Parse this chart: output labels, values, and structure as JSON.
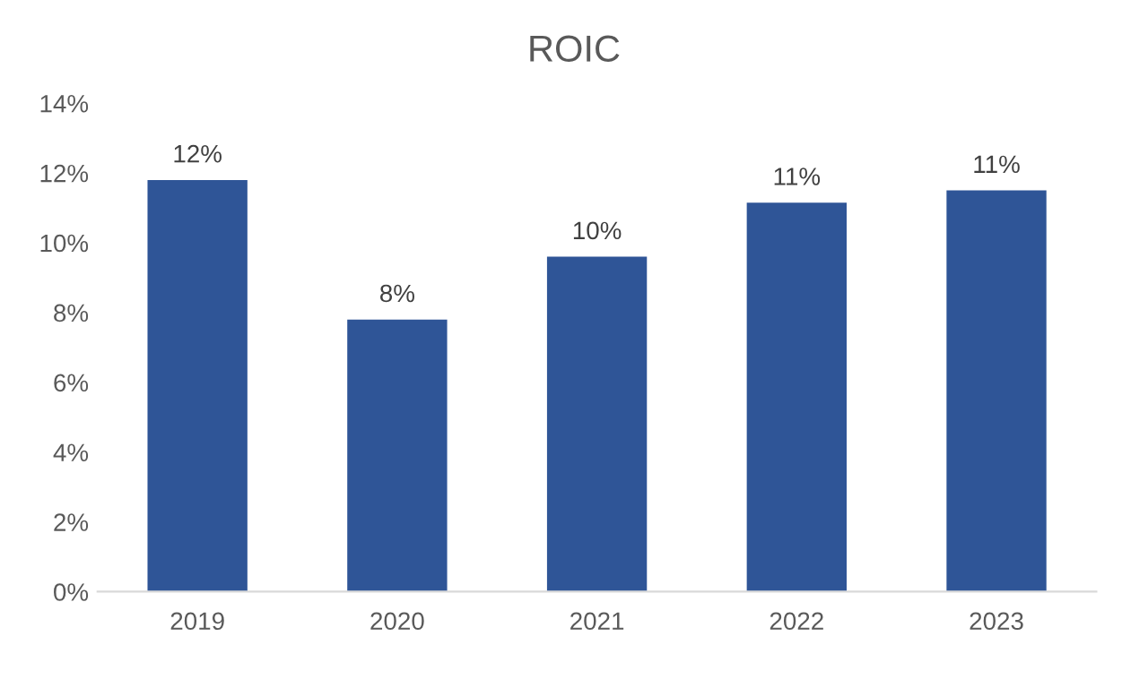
{
  "chart_data": {
    "type": "bar",
    "title": "ROIC",
    "categories": [
      "2019",
      "2020",
      "2021",
      "2022",
      "2023"
    ],
    "values": [
      11.8,
      7.8,
      9.6,
      11.15,
      11.5
    ],
    "value_labels": [
      "12%",
      "8%",
      "10%",
      "11%",
      "11%"
    ],
    "color": "#2f5597",
    "ylim": [
      0,
      14
    ],
    "yticks": [
      {
        "value": 0,
        "label": "0%"
      },
      {
        "value": 2,
        "label": "2%"
      },
      {
        "value": 4,
        "label": "4%"
      },
      {
        "value": 6,
        "label": "6%"
      },
      {
        "value": 8,
        "label": "8%"
      },
      {
        "value": 10,
        "label": "10%"
      },
      {
        "value": 12,
        "label": "12%"
      },
      {
        "value": 14,
        "label": "14%"
      }
    ],
    "grid": false,
    "legend": false
  }
}
